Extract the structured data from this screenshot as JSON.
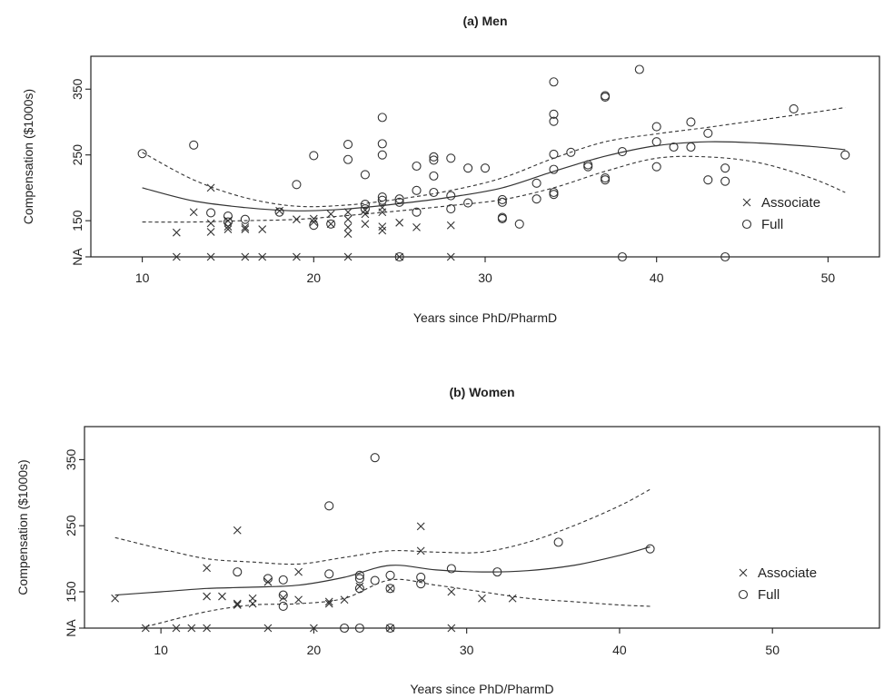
{
  "chart_data": [
    {
      "panel": "men",
      "type": "scatter",
      "title": "(a) Men",
      "xlabel": "Years since PhD/PharmD",
      "ylabel": "Compensation ($1000s)",
      "xlim": [
        7,
        53
      ],
      "ylim": [
        95,
        400
      ],
      "na_value": 95,
      "x_ticks": [
        10,
        20,
        30,
        40,
        50
      ],
      "y_ticks": [
        {
          "value": 95,
          "label": "NA"
        },
        {
          "value": 150,
          "label": "150"
        },
        {
          "value": 250,
          "label": "250"
        },
        {
          "value": 350,
          "label": "350"
        }
      ],
      "legend": {
        "placement": "right",
        "entries": [
          {
            "symbol": "×",
            "label": "Associate"
          },
          {
            "symbol": "○",
            "label": "Full"
          }
        ]
      },
      "series": [
        {
          "name": "Associate",
          "marker": "x",
          "points": [
            [
              12,
              95
            ],
            [
              14,
              95
            ],
            [
              16,
              95
            ],
            [
              17,
              95
            ],
            [
              19,
              95
            ],
            [
              22,
              95
            ],
            [
              25,
              95
            ],
            [
              28,
              95
            ],
            [
              12,
              132
            ],
            [
              13,
              163
            ],
            [
              14,
              133
            ],
            [
              14,
              146
            ],
            [
              14,
              200
            ],
            [
              15,
              137
            ],
            [
              15,
              141
            ],
            [
              15,
              150
            ],
            [
              16,
              137
            ],
            [
              16,
              140
            ],
            [
              17,
              137
            ],
            [
              18,
              165
            ],
            [
              19,
              152
            ],
            [
              20,
              148
            ],
            [
              20,
              153
            ],
            [
              21,
              145
            ],
            [
              21,
              160
            ],
            [
              22,
              130
            ],
            [
              22,
              140
            ],
            [
              22,
              152
            ],
            [
              22,
              163
            ],
            [
              23,
              145
            ],
            [
              23,
              160
            ],
            [
              23,
              166
            ],
            [
              24,
              135
            ],
            [
              24,
              141
            ],
            [
              24,
              163
            ],
            [
              24,
              170
            ],
            [
              25,
              147
            ],
            [
              26,
              140
            ],
            [
              28,
              143
            ]
          ]
        },
        {
          "name": "Full",
          "marker": "o",
          "points": [
            [
              38,
              95
            ],
            [
              44,
              95
            ],
            [
              25,
              95
            ],
            [
              10,
              252
            ],
            [
              13,
              265
            ],
            [
              14,
              162
            ],
            [
              15,
              148
            ],
            [
              15,
              157
            ],
            [
              16,
              152
            ],
            [
              18,
              163
            ],
            [
              19,
              205
            ],
            [
              20,
              143
            ],
            [
              20,
              249
            ],
            [
              21,
              145
            ],
            [
              22,
              243
            ],
            [
              22,
              266
            ],
            [
              23,
              168
            ],
            [
              23,
              175
            ],
            [
              23,
              220
            ],
            [
              24,
              181
            ],
            [
              24,
              186
            ],
            [
              24,
              250
            ],
            [
              24,
              267
            ],
            [
              24,
              307
            ],
            [
              25,
              178
            ],
            [
              25,
              183
            ],
            [
              26,
              163
            ],
            [
              26,
              196
            ],
            [
              26,
              233
            ],
            [
              27,
              193
            ],
            [
              27,
              218
            ],
            [
              27,
              242
            ],
            [
              27,
              247
            ],
            [
              28,
              168
            ],
            [
              28,
              188
            ],
            [
              28,
              245
            ],
            [
              29,
              177
            ],
            [
              29,
              230
            ],
            [
              30,
              230
            ],
            [
              31,
              153
            ],
            [
              31,
              155
            ],
            [
              31,
              178
            ],
            [
              31,
              182
            ],
            [
              32,
              145
            ],
            [
              33,
              183
            ],
            [
              33,
              207
            ],
            [
              34,
              190
            ],
            [
              34,
              193
            ],
            [
              34,
              228
            ],
            [
              34,
              251
            ],
            [
              34,
              301
            ],
            [
              34,
              312
            ],
            [
              34,
              361
            ],
            [
              35,
              254
            ],
            [
              36,
              232
            ],
            [
              36,
              235
            ],
            [
              37,
              212
            ],
            [
              37,
              215
            ],
            [
              37,
              338
            ],
            [
              37,
              340
            ],
            [
              38,
              255
            ],
            [
              39,
              380
            ],
            [
              40,
              232
            ],
            [
              40,
              270
            ],
            [
              40,
              293
            ],
            [
              41,
              262
            ],
            [
              42,
              262
            ],
            [
              42,
              300
            ],
            [
              43,
              212
            ],
            [
              43,
              283
            ],
            [
              44,
              210
            ],
            [
              44,
              230
            ],
            [
              48,
              320
            ],
            [
              51,
              250
            ]
          ]
        }
      ],
      "fit": {
        "x": [
          10,
          13,
          16,
          19,
          22,
          25,
          28,
          31,
          34,
          37,
          40,
          43,
          46,
          49,
          51
        ],
        "y": [
          200,
          180,
          170,
          165,
          168,
          176,
          186,
          200,
          225,
          248,
          264,
          270,
          268,
          263,
          258
        ]
      },
      "upper": {
        "x": [
          10,
          13,
          16,
          19,
          22,
          25,
          28,
          31,
          34,
          37,
          40,
          43,
          46,
          49,
          51
        ],
        "y": [
          254,
          212,
          185,
          172,
          174,
          183,
          196,
          215,
          245,
          270,
          282,
          292,
          303,
          314,
          322
        ]
      },
      "lower": {
        "x": [
          10,
          13,
          16,
          19,
          22,
          25,
          28,
          31,
          34,
          37,
          40,
          43,
          46,
          49,
          51
        ],
        "y": [
          148,
          148,
          150,
          152,
          158,
          165,
          173,
          182,
          200,
          225,
          245,
          247,
          238,
          215,
          193
        ]
      }
    },
    {
      "panel": "women",
      "type": "scatter",
      "title": "(b) Women",
      "xlabel": "Years since PhD/PharmD",
      "ylabel": "Compensation ($1000s)",
      "xlim": [
        5,
        57
      ],
      "ylim": [
        95,
        400
      ],
      "na_value": 95,
      "x_ticks": [
        10,
        20,
        30,
        40,
        50
      ],
      "y_ticks": [
        {
          "value": 95,
          "label": "NA"
        },
        {
          "value": 150,
          "label": "150"
        },
        {
          "value": 250,
          "label": "250"
        },
        {
          "value": 350,
          "label": "350"
        }
      ],
      "legend": {
        "placement": "right",
        "entries": [
          {
            "symbol": "×",
            "label": "Associate"
          },
          {
            "symbol": "○",
            "label": "Full"
          }
        ]
      },
      "series": [
        {
          "name": "Associate",
          "marker": "x",
          "points": [
            [
              9,
              95
            ],
            [
              11,
              95
            ],
            [
              12,
              95
            ],
            [
              13,
              95
            ],
            [
              17,
              95
            ],
            [
              20,
              95
            ],
            [
              25,
              95
            ],
            [
              29,
              95
            ],
            [
              7,
              140
            ],
            [
              13,
              143
            ],
            [
              13,
              186
            ],
            [
              14,
              143
            ],
            [
              15,
              130
            ],
            [
              15,
              132
            ],
            [
              15,
              243
            ],
            [
              16,
              132
            ],
            [
              16,
              140
            ],
            [
              17,
              165
            ],
            [
              18,
              141
            ],
            [
              19,
              138
            ],
            [
              19,
              180
            ],
            [
              21,
              132
            ],
            [
              21,
              135
            ],
            [
              22,
              138
            ],
            [
              23,
              158
            ],
            [
              25,
              155
            ],
            [
              27,
              212
            ],
            [
              27,
              249
            ],
            [
              29,
              150
            ],
            [
              31,
              140
            ],
            [
              33,
              140
            ]
          ]
        },
        {
          "name": "Full",
          "marker": "o",
          "points": [
            [
              22,
              95
            ],
            [
              23,
              95
            ],
            [
              25,
              95
            ],
            [
              15,
              180
            ],
            [
              17,
              170
            ],
            [
              18,
              128
            ],
            [
              18,
              145
            ],
            [
              18,
              168
            ],
            [
              21,
              177
            ],
            [
              21,
              280
            ],
            [
              23,
              155
            ],
            [
              23,
              170
            ],
            [
              23,
              175
            ],
            [
              24,
              167
            ],
            [
              24,
              353
            ],
            [
              25,
              155
            ],
            [
              25,
              175
            ],
            [
              27,
              162
            ],
            [
              27,
              172
            ],
            [
              29,
              185
            ],
            [
              32,
              180
            ],
            [
              36,
              225
            ],
            [
              42,
              215
            ]
          ]
        }
      ],
      "fit": {
        "x": [
          7,
          10,
          13,
          16,
          19,
          22,
          25,
          28,
          31,
          34,
          37,
          40,
          42
        ],
        "y": [
          145,
          150,
          155,
          157,
          160,
          172,
          190,
          183,
          180,
          182,
          190,
          205,
          218
        ]
      },
      "upper": {
        "x": [
          7,
          10,
          13,
          16,
          19,
          22,
          25,
          28,
          31,
          34,
          37,
          40,
          42
        ],
        "y": [
          232,
          215,
          200,
          195,
          192,
          202,
          212,
          210,
          210,
          225,
          250,
          280,
          305
        ]
      },
      "lower": {
        "x": [
          7,
          10,
          13,
          16,
          19,
          22,
          25,
          28,
          31,
          34,
          37,
          40,
          42
        ],
        "y": [
          85,
          103,
          120,
          130,
          132,
          140,
          168,
          160,
          150,
          140,
          135,
          130,
          128
        ]
      }
    }
  ]
}
